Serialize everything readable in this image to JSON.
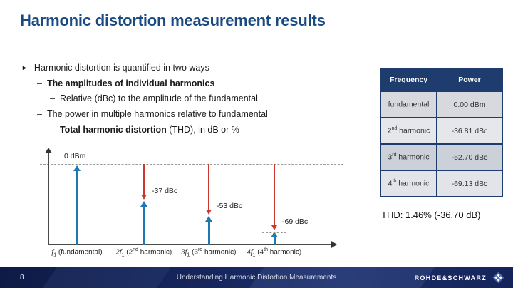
{
  "title": "Harmonic distortion measurement results",
  "bullets": {
    "l1": {
      "marker": "►",
      "text": "Harmonic distortion is quantified in two ways"
    },
    "l2": {
      "marker": "–",
      "bold": "The amplitudes of individual harmonics"
    },
    "l3": {
      "marker": "–",
      "text": "Relative (dBc) to the amplitude of the fundamental"
    },
    "l4": {
      "marker": "–",
      "pre": "The power in ",
      "underlined": "multiple",
      "post": " harmonics relative to fundamental"
    },
    "l5": {
      "marker": "–",
      "bold": "Total harmonic distortion",
      "post": " (THD), in dB or %"
    }
  },
  "chart_data": {
    "type": "bar",
    "title": "",
    "ylabel": "",
    "xlabel": "",
    "reference_level_label": "0 dBm",
    "series": [
      {
        "name": "fundamental",
        "dbc": 0,
        "label": "0 dBm"
      },
      {
        "name": "2nd harmonic",
        "dbc": -37,
        "label": "-37 dBc"
      },
      {
        "name": "3rd harmonic",
        "dbc": -53,
        "label": "-53 dBc"
      },
      {
        "name": "4th harmonic",
        "dbc": -69,
        "label": "-69 dBc"
      }
    ],
    "x_labels": [
      {
        "coef_f": "f",
        "sub": "1",
        "mid": " (fundamental",
        "sup": "",
        "end": ")"
      },
      {
        "coef_f": "2f",
        "sub": "1",
        "mid": " (2",
        "sup": "nd",
        "end": " harmonic)"
      },
      {
        "coef_f": "3f",
        "sub": "1",
        "mid": " (3",
        "sup": "rd",
        "end": " harmonic)"
      },
      {
        "coef_f": "4f",
        "sub": "1",
        "mid": " (4",
        "sup": "th",
        "end": " harmonic)"
      }
    ],
    "colors": {
      "spectral_line": "#1f78b4",
      "dbc_arrow": "#c8382e",
      "reference_dash": "#9a9a9a"
    }
  },
  "table": {
    "headers": {
      "col1": "Frequency",
      "col2": "Power"
    },
    "rows": [
      {
        "freq_pre": "fundamental",
        "freq_sup": "",
        "freq_post": "",
        "power": "0.00 dBm"
      },
      {
        "freq_pre": "2",
        "freq_sup": "nd",
        "freq_post": " harmonic",
        "power": "-36.81 dBc"
      },
      {
        "freq_pre": "3",
        "freq_sup": "rd",
        "freq_post": " harmonic",
        "power": "-52.70 dBc"
      },
      {
        "freq_pre": "4",
        "freq_sup": "th",
        "freq_post": " harmonic",
        "power": "-69.13 dBc"
      }
    ],
    "header_color": "#1e3c6e"
  },
  "thd_text": "THD: 1.46% (-36.70 dB)",
  "footer": {
    "page_number": "8",
    "center_text": "Understanding Harmonic Distortion Measurements",
    "brand": "ROHDE&SCHWARZ",
    "bar_color": "#15245a"
  }
}
